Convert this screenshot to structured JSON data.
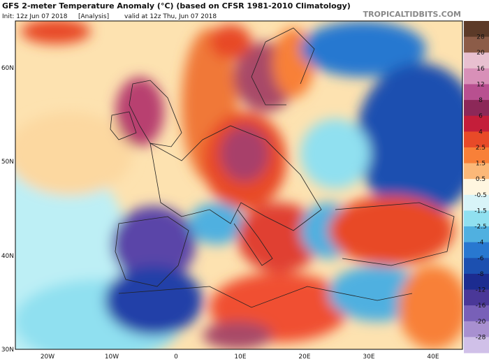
{
  "header": {
    "title": "GFS 2-meter Temperature Anomaly (°C) (based on CFSR 1981-2010 Climatology)",
    "init": "Init: 12z Jun 07 2018",
    "analysis": "[Analysis]",
    "valid": "valid at 12z Thu, Jun 07 2018"
  },
  "watermark": "TROPICALTIDBITS.COM",
  "latitude_labels": [
    "60N",
    "50N",
    "40N",
    "30N"
  ],
  "longitude_labels": [
    "20W",
    "10W",
    "0",
    "10E",
    "20E",
    "30E",
    "40E"
  ],
  "colorbar": {
    "labels": [
      "28",
      "20",
      "16",
      "12",
      "8",
      "6",
      "4",
      "2.5",
      "1.5",
      "0.5",
      "-0.5",
      "-1.5",
      "-2.5",
      "-4",
      "-6",
      "-8",
      "-12",
      "-16",
      "-20",
      "-28"
    ],
    "colors": [
      "#5c3a28",
      "#8c5c48",
      "#e8c0d0",
      "#d890b8",
      "#b85090",
      "#8c2858",
      "#c41e3a",
      "#e84a28",
      "#f88038",
      "#fbb878",
      "#fff6e0",
      "#d8f4f8",
      "#90e0f0",
      "#50b0e0",
      "#2878d0",
      "#1c50b0",
      "#1c2c90",
      "#4a3898",
      "#7860b8",
      "#a890d0",
      "#d0c0e8"
    ]
  }
}
